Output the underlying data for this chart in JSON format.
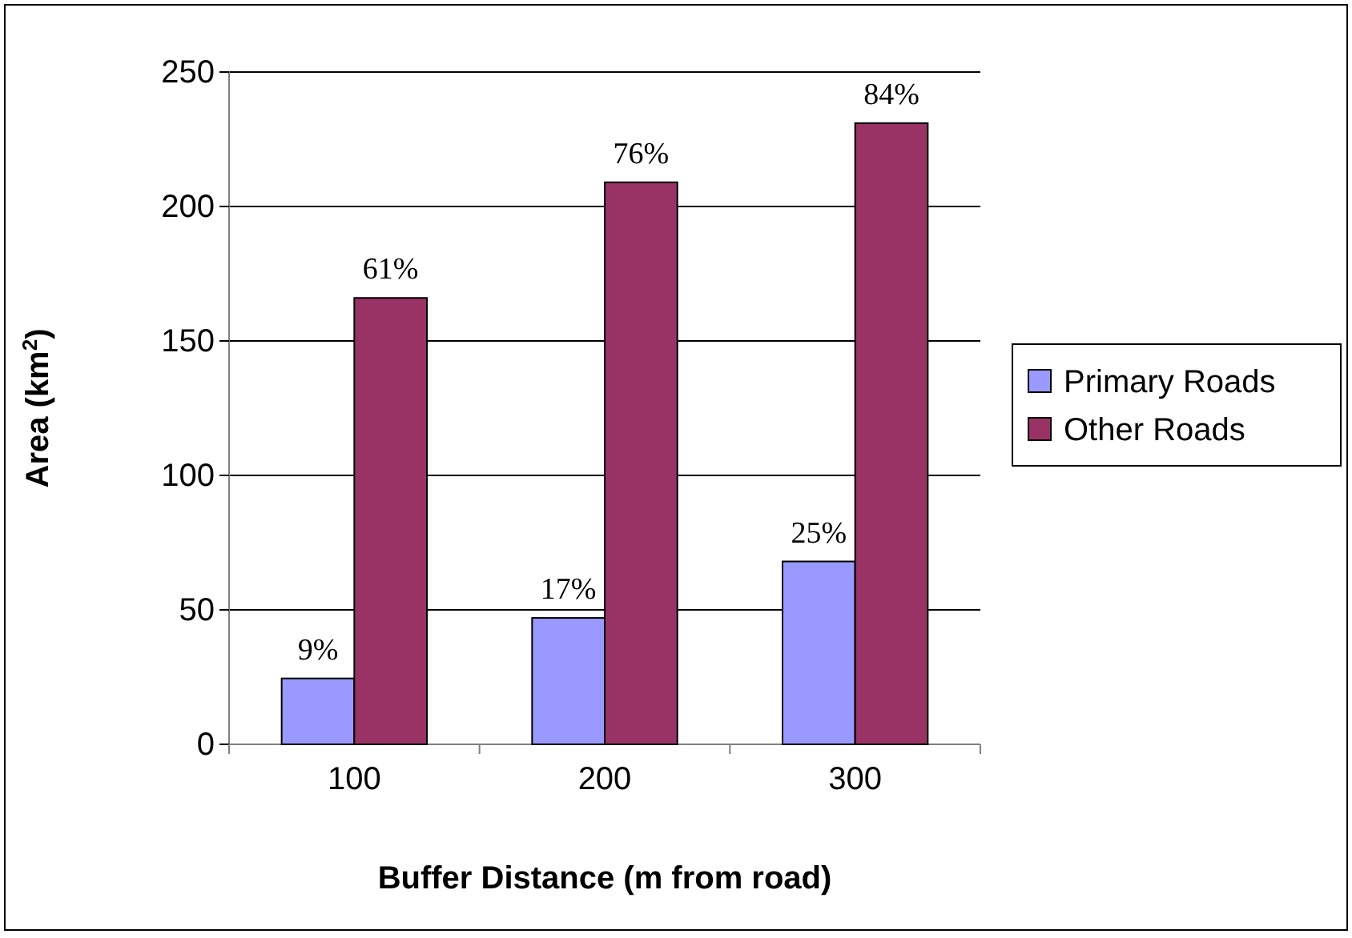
{
  "chart_data": {
    "type": "bar",
    "xlabel": "Buffer Distance (m from road)",
    "ylabel": "Area (km$^{2}$)",
    "categories": [
      "100",
      "200",
      "300"
    ],
    "series": [
      {
        "name": "Primary Roads",
        "color": "#9999ff",
        "values": [
          24.5,
          47,
          68
        ]
      },
      {
        "name": "Other Roads",
        "color": "#993366",
        "values": [
          166,
          209,
          231
        ]
      }
    ],
    "annotations": [
      {
        "text": "9%",
        "x": "100",
        "y": 24.5
      },
      {
        "text": "17%",
        "x": "200",
        "y": 47
      },
      {
        "text": "25%",
        "x": "300",
        "y": 68
      },
      {
        "text": "61%",
        "x": "100",
        "y": 166
      },
      {
        "text": "76%",
        "x": "200",
        "y": 209
      },
      {
        "text": "84%",
        "x": "300",
        "y": 231
      }
    ],
    "ylim": [
      0,
      250
    ],
    "yticks": [
      0,
      50,
      100,
      150,
      200,
      250
    ],
    "grid": "y",
    "legend": "right"
  }
}
